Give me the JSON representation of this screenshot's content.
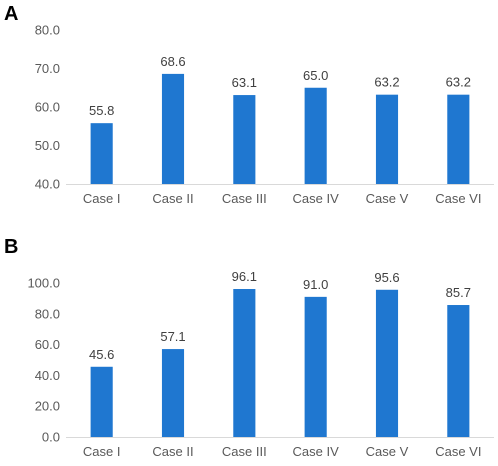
{
  "panels": [
    {
      "letter": "A"
    },
    {
      "letter": "B"
    }
  ],
  "chart_data": [
    {
      "type": "bar",
      "categories": [
        "Case I",
        "Case II",
        "Case III",
        "Case IV",
        "Case V",
        "Case VI"
      ],
      "values": [
        55.8,
        68.6,
        63.1,
        65.0,
        63.2,
        63.2
      ],
      "data_labels": [
        "55.8",
        "68.6",
        "63.1",
        "65.0",
        "63.2",
        "63.2"
      ],
      "yticks": [
        "40.0",
        "50.0",
        "60.0",
        "70.0",
        "80.0"
      ],
      "ylim": [
        40,
        80
      ],
      "title": "",
      "xlabel": "",
      "ylabel": "",
      "grid": false,
      "color": "#1f77d0"
    },
    {
      "type": "bar",
      "categories": [
        "Case I",
        "Case II",
        "Case III",
        "Case IV",
        "Case V",
        "Case VI"
      ],
      "values": [
        45.6,
        57.1,
        96.1,
        91.0,
        95.6,
        85.7
      ],
      "data_labels": [
        "45.6",
        "57.1",
        "96.1",
        "91.0",
        "95.6",
        "85.7"
      ],
      "yticks": [
        "0.0",
        "20.0",
        "40.0",
        "60.0",
        "80.0",
        "100.0"
      ],
      "ylim": [
        0,
        100
      ],
      "title": "",
      "xlabel": "",
      "ylabel": "",
      "grid": false,
      "color": "#1f77d0"
    }
  ]
}
